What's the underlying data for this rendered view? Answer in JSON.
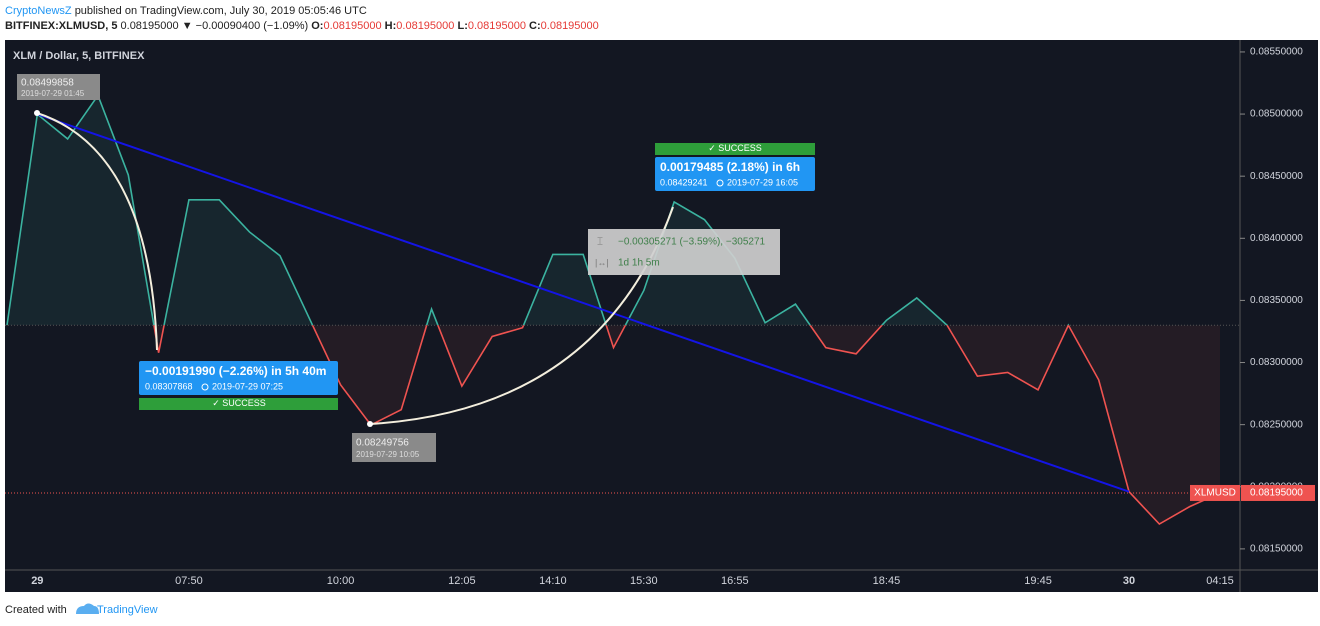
{
  "header": {
    "author": "CryptoNewsZ",
    "published": "published on TradingView.com, July 30, 2019 05:05:46 UTC",
    "symbol": "BITFINEX:XLMUSD, 5",
    "last": "0.08195000",
    "change": "▼ −0.00090400 (−1.09%)",
    "ohlc": [
      {
        "label": "O:",
        "value": "0.08195000"
      },
      {
        "label": "H:",
        "value": "0.08195000"
      },
      {
        "label": "L:",
        "value": "0.08195000"
      },
      {
        "label": "C:",
        "value": "0.08195000"
      }
    ]
  },
  "chart_data": {
    "type": "line",
    "title": "XLM / Dollar, 5, BITFINEX",
    "categories": [
      null,
      "29",
      null,
      null,
      null,
      null,
      "07:50",
      null,
      null,
      null,
      null,
      "10:00",
      null,
      null,
      null,
      "12:05",
      null,
      null,
      "14:10",
      null,
      null,
      "15:30",
      null,
      null,
      "16:55",
      null,
      null,
      null,
      null,
      "18:45",
      null,
      null,
      null,
      null,
      "19:45",
      null,
      null,
      "30",
      null,
      null,
      "04:15"
    ],
    "series": [
      {
        "name": "XLMUSD",
        "color": "#3bb3a0",
        "color_below": "#ef5350",
        "values": [
          0.0833,
          0.08499858,
          0.0848,
          0.08515,
          0.08451,
          0.08307868,
          0.08431,
          0.08431,
          0.08405,
          0.08386,
          0.08334,
          0.08282,
          0.08249756,
          0.08262,
          0.08343,
          0.08281,
          0.08321,
          0.08328,
          0.08387,
          0.08387,
          0.08312,
          0.08358,
          0.08429241,
          0.08415,
          0.08384,
          0.08332,
          0.08347,
          0.08312,
          0.08307,
          0.08334,
          0.08352,
          0.0833,
          0.08289,
          0.08292,
          0.08278,
          0.0833,
          0.08286,
          0.08196,
          0.0817,
          0.08184,
          0.08195
        ]
      }
    ],
    "baseline": 0.0833,
    "last_price": {
      "value": 0.08195,
      "label": "0.08195000"
    },
    "ylim": [
      0.08133,
      0.08558
    ],
    "yticks": [
      {
        "value": 0.0855,
        "label": "0.08550000"
      },
      {
        "value": 0.085,
        "label": "0.08500000"
      },
      {
        "value": 0.0845,
        "label": "0.08450000"
      },
      {
        "value": 0.084,
        "label": "0.08400000"
      },
      {
        "value": 0.0835,
        "label": "0.08350000"
      },
      {
        "value": 0.083,
        "label": "0.08300000"
      },
      {
        "value": 0.0825,
        "label": "0.08250000"
      },
      {
        "value": 0.082,
        "label": "0.08200000"
      },
      {
        "value": 0.0815,
        "label": "0.08150000"
      }
    ],
    "trend_color": "#1414e6",
    "annotations": [
      {
        "price": "0.08499858",
        "time": "2019-07-29 01:45"
      },
      {
        "change": "−0.00191990 (−2.26%) in 5h 40m",
        "price": "0.08307868",
        "time": "2019-07-29  07:25",
        "status": "SUCCESS"
      },
      {
        "price": "0.08249756",
        "time": "2019-07-29 10:05"
      },
      {
        "change": "0.00179485 (2.18%) in 6h",
        "price": "0.08429241",
        "time": "2019-07-29  16:05",
        "status": "SUCCESS"
      },
      {
        "change": "−0.00305271 (−3.59%), −305271",
        "duration": "1d 1h 5m"
      }
    ]
  },
  "footer": {
    "created": "Created with",
    "brand": "TradingView"
  }
}
